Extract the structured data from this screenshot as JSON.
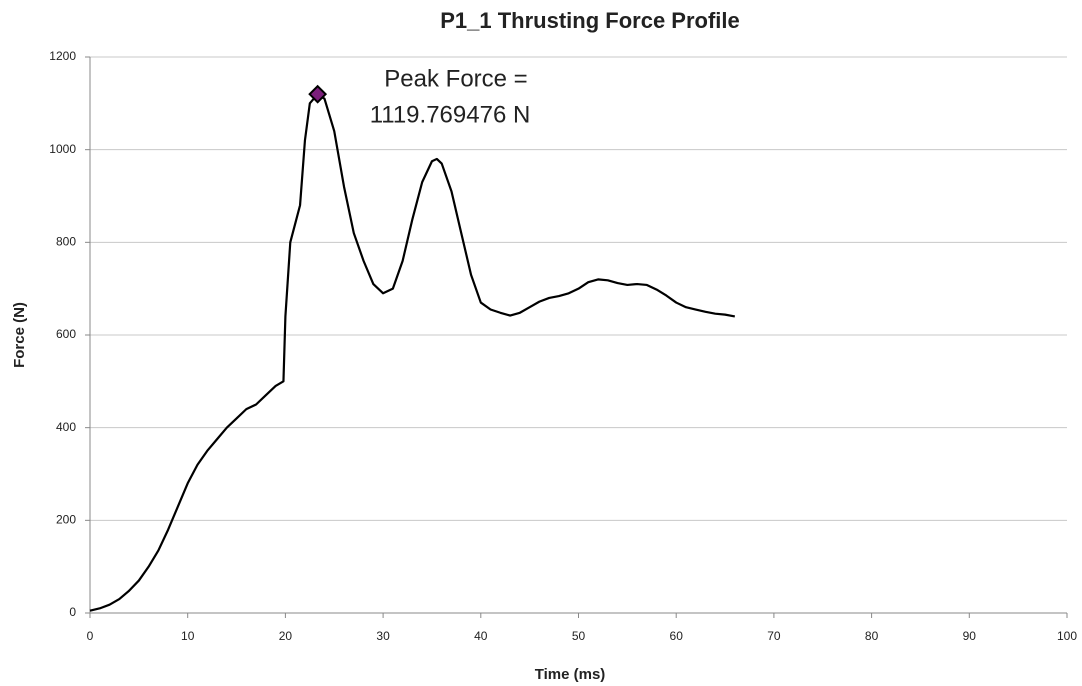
{
  "chart_data": {
    "type": "line",
    "title": "P1_1 Thrusting Force Profile",
    "xlabel": "Time (ms)",
    "ylabel": "Force (N)",
    "annotation": [
      "Peak Force =",
      "1119.769476 N"
    ],
    "series": [
      {
        "color": "#000000",
        "marker": "none",
        "x": [
          0,
          1,
          2,
          3,
          4,
          5,
          6,
          7,
          8,
          9,
          10,
          11,
          12,
          13,
          14,
          15,
          16,
          17,
          18,
          19,
          19.8,
          20,
          20.5,
          21,
          21.5,
          22,
          22.5,
          23.3,
          24,
          25,
          26,
          27,
          28,
          29,
          30,
          31,
          32,
          33,
          34,
          35,
          35.5,
          36,
          37,
          38,
          39,
          40,
          41,
          42,
          43,
          44,
          45,
          46,
          47,
          48,
          49,
          50,
          51,
          52,
          53,
          54,
          55,
          56,
          57,
          58,
          59,
          60,
          61,
          62,
          63,
          64,
          65,
          66
        ],
        "values": [
          5,
          10,
          18,
          30,
          48,
          70,
          100,
          135,
          180,
          230,
          280,
          320,
          350,
          375,
          400,
          420,
          440,
          450,
          470,
          490,
          500,
          640,
          800,
          840,
          880,
          1020,
          1100,
          1119.769476,
          1110,
          1040,
          920,
          820,
          760,
          710,
          690,
          700,
          760,
          850,
          930,
          975,
          980,
          970,
          910,
          820,
          730,
          670,
          655,
          648,
          642,
          648,
          660,
          672,
          680,
          684,
          690,
          700,
          714,
          720,
          718,
          712,
          708,
          710,
          708,
          698,
          685,
          670,
          660,
          655,
          650,
          646,
          644,
          640
        ]
      },
      {
        "color": "#7b1f7b",
        "marker": "diamond",
        "x": [
          23.3
        ],
        "values": [
          1119.769476
        ]
      }
    ],
    "xlim": [
      0,
      100
    ],
    "xticks": [
      0,
      10,
      20,
      30,
      40,
      50,
      60,
      70,
      80,
      90,
      100
    ],
    "ylim": [
      0,
      1200
    ],
    "yticks": [
      0,
      200,
      400,
      600,
      800,
      1000,
      1200
    ],
    "grid": true
  }
}
